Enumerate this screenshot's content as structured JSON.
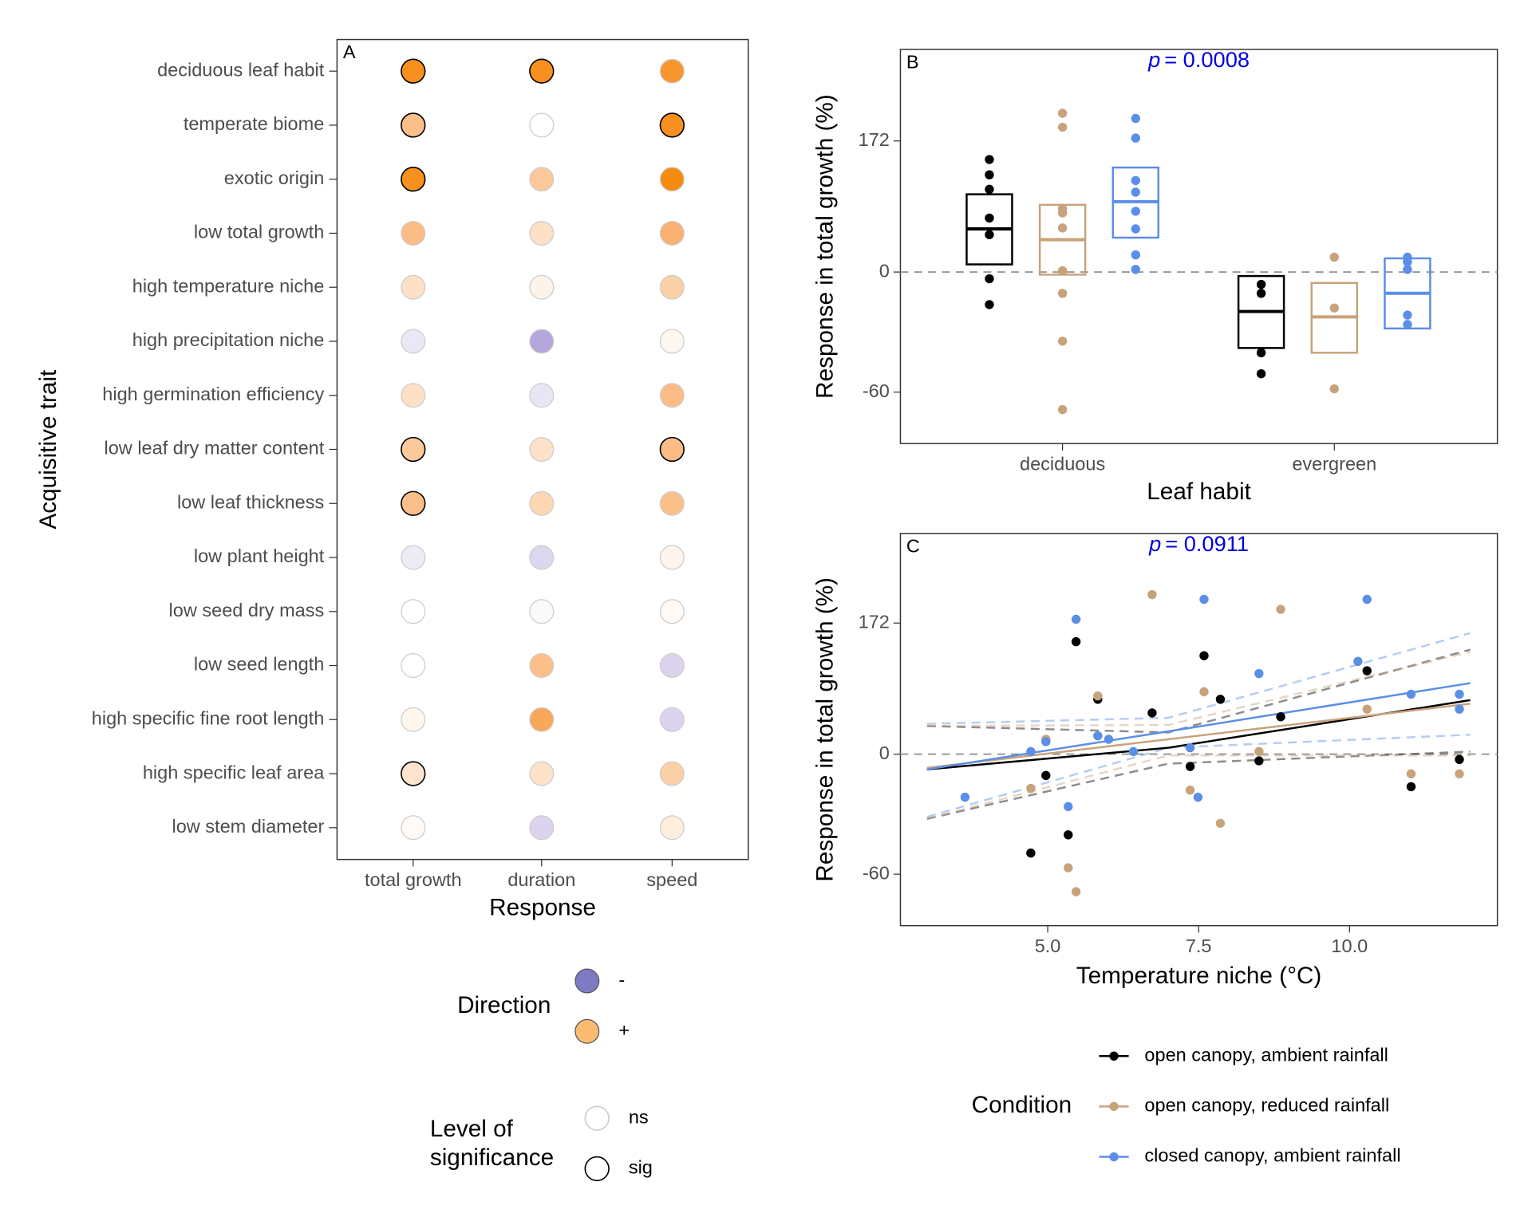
{
  "chart_data": [
    {
      "type": "dot-matrix",
      "label": "A",
      "categories": [
        "deciduous leaf habit",
        "temperate biome",
        "exotic origin",
        "low total growth",
        "high temperature niche",
        "high precipitation niche",
        "high germination efficiency",
        "low leaf dry matter content",
        "low leaf thickness",
        "low plant height",
        "low seed dry mass",
        "low seed length",
        "high specific fine root length",
        "high specific leaf area",
        "low stem diameter"
      ],
      "responses": [
        "total growth",
        "duration",
        "speed"
      ],
      "colors": [
        [
          "#f7901e",
          "#f7901e",
          "#f9972e"
        ],
        [
          "#fbc08a",
          "#ffffff",
          "#f7901e"
        ],
        [
          "#f7901e",
          "#fcc89a",
          "#f78b10"
        ],
        [
          "#fbbd85",
          "#fde0c5",
          "#fab071"
        ],
        [
          "#fde0c5",
          "#fef3e8",
          "#fcd0a6"
        ],
        [
          "#ebe8f5",
          "#b5a6dc",
          "#fef7f0"
        ],
        [
          "#fde0c5",
          "#e9e6f4",
          "#fbbd85"
        ],
        [
          "#fcc99a",
          "#fde2c9",
          "#fbbd85"
        ],
        [
          "#fbc08a",
          "#fdd7b3",
          "#fbc08a"
        ],
        [
          "#eeebf7",
          "#dcd6ef",
          "#fff5ec"
        ],
        [
          "#ffffff",
          "#fafafc",
          "#fffaf5"
        ],
        [
          "#ffffff",
          "#fbc08a",
          "#dcd4ee"
        ],
        [
          "#fff6ec",
          "#f9a75a",
          "#dcd4ee"
        ],
        [
          "#fde4cc",
          "#fde2c9",
          "#fcd0a6"
        ],
        [
          "#fffaf5",
          "#dcd4ee",
          "#feeede"
        ]
      ],
      "significant": [
        [
          true,
          true,
          false
        ],
        [
          true,
          false,
          true
        ],
        [
          true,
          false,
          false
        ],
        [
          false,
          false,
          false
        ],
        [
          false,
          false,
          false
        ],
        [
          false,
          false,
          false
        ],
        [
          false,
          false,
          false
        ],
        [
          true,
          false,
          true
        ],
        [
          true,
          false,
          false
        ],
        [
          false,
          false,
          false
        ],
        [
          false,
          false,
          false
        ],
        [
          false,
          false,
          false
        ],
        [
          false,
          false,
          false
        ],
        [
          true,
          false,
          false
        ],
        [
          false,
          false,
          false
        ]
      ],
      "xlabel": "Response",
      "ylabel": "Acquisitive trait",
      "direction_legend": {
        "title": "Direction",
        "labels": [
          "-",
          "+"
        ],
        "colors": [
          "#7f7ac6",
          "#fbbb72"
        ]
      },
      "significance_legend": {
        "title": [
          "Level of",
          "significance"
        ],
        "labels": [
          "ns",
          "sig"
        ],
        "strokes": [
          "#cccccc",
          "#000000"
        ]
      }
    },
    {
      "type": "box-strip",
      "label": "B",
      "scale": "log-ratio",
      "categories": [
        "deciduous",
        "evergreen"
      ],
      "series": [
        {
          "color": "#000000",
          "groups": [
            {
              "q1": 6,
              "median": 39,
              "q3": 81,
              "points": [
                136,
                110,
                88,
                51,
                33,
                -5,
                -22
              ]
            },
            {
              "q1": -44,
              "median": -26,
              "q3": -3,
              "points": [
                -9,
                -15,
                -46,
                -54
              ]
            }
          ]
        },
        {
          "color": "#c8a27a",
          "groups": [
            {
              "q1": -2,
              "median": 28,
              "q3": 67,
              "points": [
                236,
                202,
                62,
                57,
                40,
                1,
                -15,
                -41,
                -65
              ]
            },
            {
              "q1": -46,
              "median": -29,
              "q3": -8,
              "points": [
                12,
                -24,
                -59
              ]
            }
          ]
        },
        {
          "color": "#5b8ee6",
          "groups": [
            {
              "q1": 30,
              "median": 71,
              "q3": 122,
              "points": [
                223,
                178,
                101,
                84,
                59,
                39,
                14,
                2
              ]
            },
            {
              "q1": -35,
              "median": -15,
              "q3": 11,
              "points": [
                12,
                8,
                2,
                -28,
                -33
              ]
            }
          ]
        }
      ],
      "ylim": [
        -73,
        447
      ],
      "yticks": [
        -60,
        0,
        172
      ],
      "reference_line": 0,
      "xlabel": "Leaf habit",
      "ylabel": "Response in total growth (%)",
      "annotation": {
        "symbol": "p",
        "text": "= 0.0008"
      }
    },
    {
      "type": "scatter",
      "label": "C",
      "scale": "log-ratio",
      "series": [
        {
          "name": "open canopy, ambient rainfall",
          "color": "#000000",
          "x": [
            4.72,
            4.97,
            5.34,
            5.47,
            5.83,
            6.73,
            7.36,
            7.59,
            7.86,
            8.5,
            8.86,
            10.29,
            11.02,
            11.82
          ],
          "values": [
            -53,
            -15,
            -46,
            136,
            52,
            37,
            -9,
            112,
            52,
            -5,
            33,
            89,
            -22,
            -4
          ],
          "fit": {
            "x": [
              3,
              7,
              12
            ],
            "values": [
              -11,
              5,
              51
            ],
            "lower": [
              -39,
              -7,
              2
            ],
            "upper": [
              24,
              18,
              122
            ]
          }
        },
        {
          "name": "open canopy, reduced rainfall",
          "color": "#c8a27a",
          "x": [
            4.72,
            4.97,
            5.34,
            5.47,
            5.83,
            6.73,
            7.36,
            7.59,
            7.86,
            8.5,
            8.86,
            10.29,
            11.02,
            11.82
          ],
          "values": [
            -23,
            12,
            -58,
            -65,
            56,
            238,
            -24,
            61,
            -41,
            2,
            202,
            41,
            -14,
            -14
          ],
          "fit": {
            "x": [
              3,
              7,
              12
            ],
            "values": [
              -10,
              12,
              47
            ],
            "lower": [
              -39,
              -1,
              -1
            ],
            "upper": [
              24,
              25,
              118
            ]
          }
        },
        {
          "name": "closed canopy, ambient rainfall",
          "color": "#5b8ee6",
          "x": [
            3.63,
            4.72,
            4.97,
            5.34,
            5.47,
            5.83,
            6.01,
            6.42,
            7.36,
            7.49,
            7.59,
            8.5,
            10.14,
            10.29,
            11.02,
            11.82,
            11.82
          ],
          "values": [
            -28,
            2,
            10,
            -33,
            180,
            15,
            12,
            2,
            5,
            -28,
            226,
            85,
            103,
            226,
            58,
            58,
            41
          ],
          "fit": {
            "x": [
              3,
              7,
              12
            ],
            "values": [
              -11,
              19,
              72
            ],
            "lower": [
              -38,
              5,
              16
            ],
            "upper": [
              26,
              32,
              152
            ]
          }
        }
      ],
      "xlim": [
        2.56,
        12.45
      ],
      "xticks": [
        {
          "value": 5,
          "label": "5.0"
        },
        {
          "value": 7.5,
          "label": "7.5"
        },
        {
          "value": 10,
          "label": "10.0"
        }
      ],
      "ylim": [
        -73,
        439
      ],
      "yticks": [
        -60,
        0,
        172
      ],
      "reference_line": 0,
      "xlabel": "Temperature niche (°C)",
      "ylabel": "Response in total growth (%)",
      "annotation": {
        "symbol": "p",
        "text": "= 0.0911"
      },
      "legend": {
        "title": "Condition"
      }
    }
  ]
}
